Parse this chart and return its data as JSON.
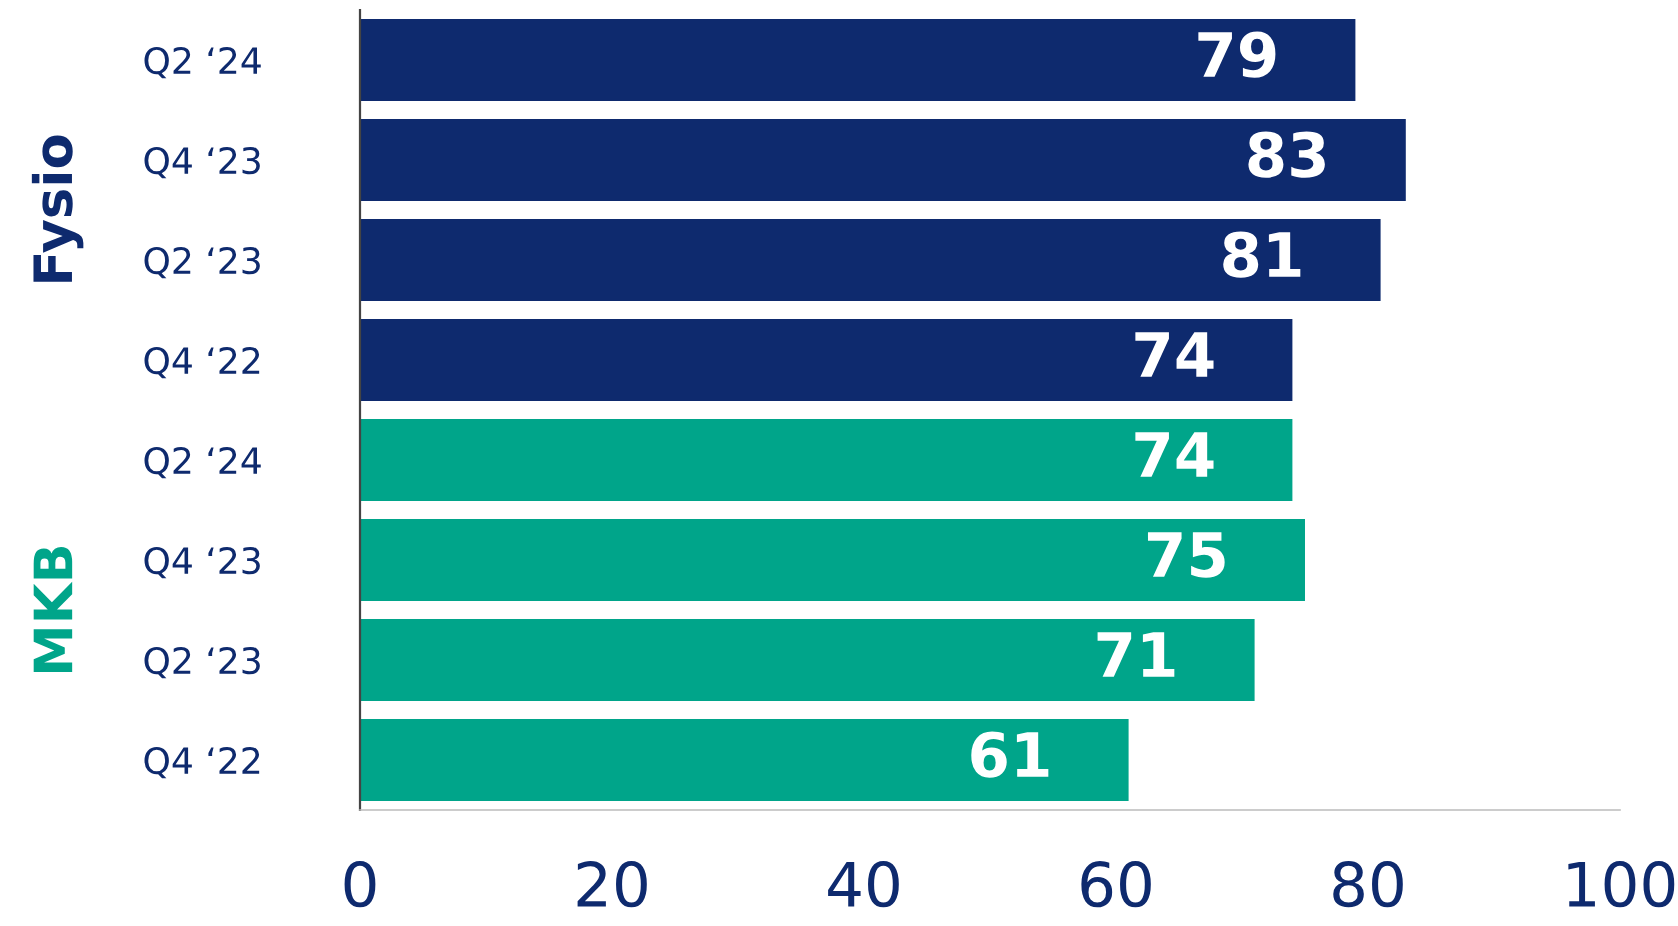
{
  "chart_data": {
    "type": "bar",
    "orientation": "horizontal",
    "categories": [
      "Q2 ‘24",
      "Q4 ‘23",
      "Q2 ‘23",
      "Q4 ‘22",
      "Q2 ‘24",
      "Q4 ‘23",
      "Q2 ‘23",
      "Q4 ‘22"
    ],
    "series": [
      {
        "name": "Fysio",
        "color": "#0e2a6e",
        "values": [
          79,
          83,
          81,
          74,
          null,
          null,
          null,
          null
        ]
      },
      {
        "name": "MKB",
        "color": "#00a58a",
        "values": [
          null,
          null,
          null,
          null,
          74,
          75,
          71,
          61
        ]
      }
    ],
    "xlim": [
      0,
      100
    ],
    "xticks": [
      0,
      20,
      40,
      60,
      80,
      100
    ],
    "data_labels": true,
    "grid": false,
    "legend": false
  }
}
